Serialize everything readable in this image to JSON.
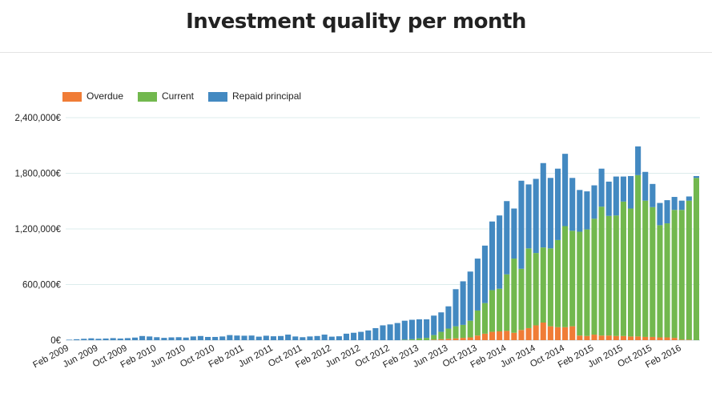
{
  "page": {
    "title": "Investment quality per month"
  },
  "legend": {
    "items": [
      {
        "label": "Overdue",
        "color": "#f07c36"
      },
      {
        "label": "Current",
        "color": "#72b84e"
      },
      {
        "label": "Repaid principal",
        "color": "#4389c1"
      }
    ]
  },
  "chart_data": {
    "type": "bar",
    "stacked": true,
    "ylim": [
      0,
      2400000
    ],
    "yticks": [
      0,
      600000,
      1200000,
      1800000,
      2400000
    ],
    "ytick_labels": [
      "0€",
      "600,000€",
      "1,200,000€",
      "1,800,000€",
      "2,400,000€"
    ],
    "xtick_labels": [
      "Feb 2009",
      "Jun 2009",
      "Oct 2009",
      "Feb 2010",
      "Jun 2010",
      "Oct 2010",
      "Feb 2011",
      "Jun 2011",
      "Oct 2011",
      "Feb 2012",
      "Jun 2012",
      "Oct 2012",
      "Feb 2013",
      "Jun 2013",
      "Oct 2013",
      "Feb 2014",
      "Jun 2014",
      "Oct 2014",
      "Feb 2015",
      "Jun 2015",
      "Oct 2015",
      "Feb 2016"
    ],
    "categories": [
      "2009-02",
      "2009-03",
      "2009-04",
      "2009-05",
      "2009-06",
      "2009-07",
      "2009-08",
      "2009-09",
      "2009-10",
      "2009-11",
      "2009-12",
      "2010-01",
      "2010-02",
      "2010-03",
      "2010-04",
      "2010-05",
      "2010-06",
      "2010-07",
      "2010-08",
      "2010-09",
      "2010-10",
      "2010-11",
      "2010-12",
      "2011-01",
      "2011-02",
      "2011-03",
      "2011-04",
      "2011-05",
      "2011-06",
      "2011-07",
      "2011-08",
      "2011-09",
      "2011-10",
      "2011-11",
      "2011-12",
      "2012-01",
      "2012-02",
      "2012-03",
      "2012-04",
      "2012-05",
      "2012-06",
      "2012-07",
      "2012-08",
      "2012-09",
      "2012-10",
      "2012-11",
      "2012-12",
      "2013-01",
      "2013-02",
      "2013-03",
      "2013-04",
      "2013-05",
      "2013-06",
      "2013-07",
      "2013-08",
      "2013-09",
      "2013-10",
      "2013-11",
      "2013-12",
      "2014-01",
      "2014-02",
      "2014-03",
      "2014-04",
      "2014-05",
      "2014-06",
      "2014-07",
      "2014-08",
      "2014-09",
      "2014-10",
      "2014-11",
      "2014-12",
      "2015-01",
      "2015-02",
      "2015-03",
      "2015-04",
      "2015-05",
      "2015-06",
      "2015-07",
      "2015-08",
      "2015-09",
      "2015-10",
      "2015-11",
      "2015-12",
      "2016-01",
      "2016-02",
      "2016-03",
      "2016-04"
    ],
    "series": [
      {
        "name": "Overdue",
        "color": "#f07c36",
        "values": [
          0,
          0,
          0,
          0,
          0,
          0,
          0,
          0,
          0,
          0,
          0,
          0,
          0,
          0,
          0,
          0,
          0,
          0,
          0,
          0,
          0,
          0,
          0,
          0,
          0,
          0,
          0,
          0,
          0,
          0,
          0,
          0,
          0,
          0,
          0,
          0,
          0,
          0,
          0,
          0,
          0,
          0,
          0,
          0,
          0,
          0,
          0,
          0,
          0,
          0,
          5000,
          10000,
          15000,
          20000,
          25000,
          30000,
          50000,
          70000,
          90000,
          95000,
          100000,
          80000,
          110000,
          130000,
          160000,
          190000,
          150000,
          140000,
          140000,
          150000,
          50000,
          45000,
          60000,
          50000,
          50000,
          45000,
          45000,
          40000,
          40000,
          35000,
          35000,
          30000,
          30000,
          25000,
          5000,
          5000,
          0
        ]
      },
      {
        "name": "Current",
        "color": "#72b84e",
        "values": [
          0,
          0,
          0,
          0,
          0,
          0,
          0,
          0,
          0,
          0,
          0,
          0,
          0,
          0,
          0,
          0,
          0,
          0,
          0,
          0,
          0,
          0,
          0,
          0,
          0,
          0,
          0,
          0,
          0,
          0,
          0,
          0,
          0,
          0,
          0,
          0,
          0,
          0,
          0,
          0,
          0,
          0,
          0,
          0,
          0,
          0,
          5000,
          10000,
          20000,
          25000,
          50000,
          80000,
          110000,
          130000,
          140000,
          180000,
          270000,
          330000,
          450000,
          460000,
          610000,
          800000,
          660000,
          860000,
          780000,
          810000,
          840000,
          940000,
          1090000,
          1030000,
          1120000,
          1150000,
          1250000,
          1390000,
          1290000,
          1300000,
          1450000,
          1380000,
          1740000,
          1470000,
          1400000,
          1210000,
          1230000,
          1380000,
          1400000,
          1500000,
          1750000
        ]
      },
      {
        "name": "Repaid principal",
        "color": "#4389c1",
        "values": [
          5000,
          10000,
          15000,
          20000,
          15000,
          18000,
          22000,
          18000,
          22000,
          28000,
          45000,
          40000,
          32000,
          25000,
          30000,
          32000,
          28000,
          40000,
          45000,
          35000,
          35000,
          40000,
          55000,
          50000,
          48000,
          50000,
          38000,
          48000,
          42000,
          45000,
          60000,
          40000,
          32000,
          40000,
          45000,
          60000,
          38000,
          42000,
          70000,
          80000,
          90000,
          105000,
          130000,
          160000,
          170000,
          185000,
          205000,
          210000,
          205000,
          200000,
          210000,
          210000,
          240000,
          400000,
          470000,
          530000,
          560000,
          620000,
          740000,
          790000,
          790000,
          540000,
          950000,
          690000,
          800000,
          910000,
          760000,
          770000,
          780000,
          570000,
          450000,
          410000,
          360000,
          410000,
          370000,
          420000,
          270000,
          350000,
          310000,
          310000,
          250000,
          240000,
          250000,
          140000,
          100000,
          45000,
          20000
        ]
      }
    ]
  }
}
